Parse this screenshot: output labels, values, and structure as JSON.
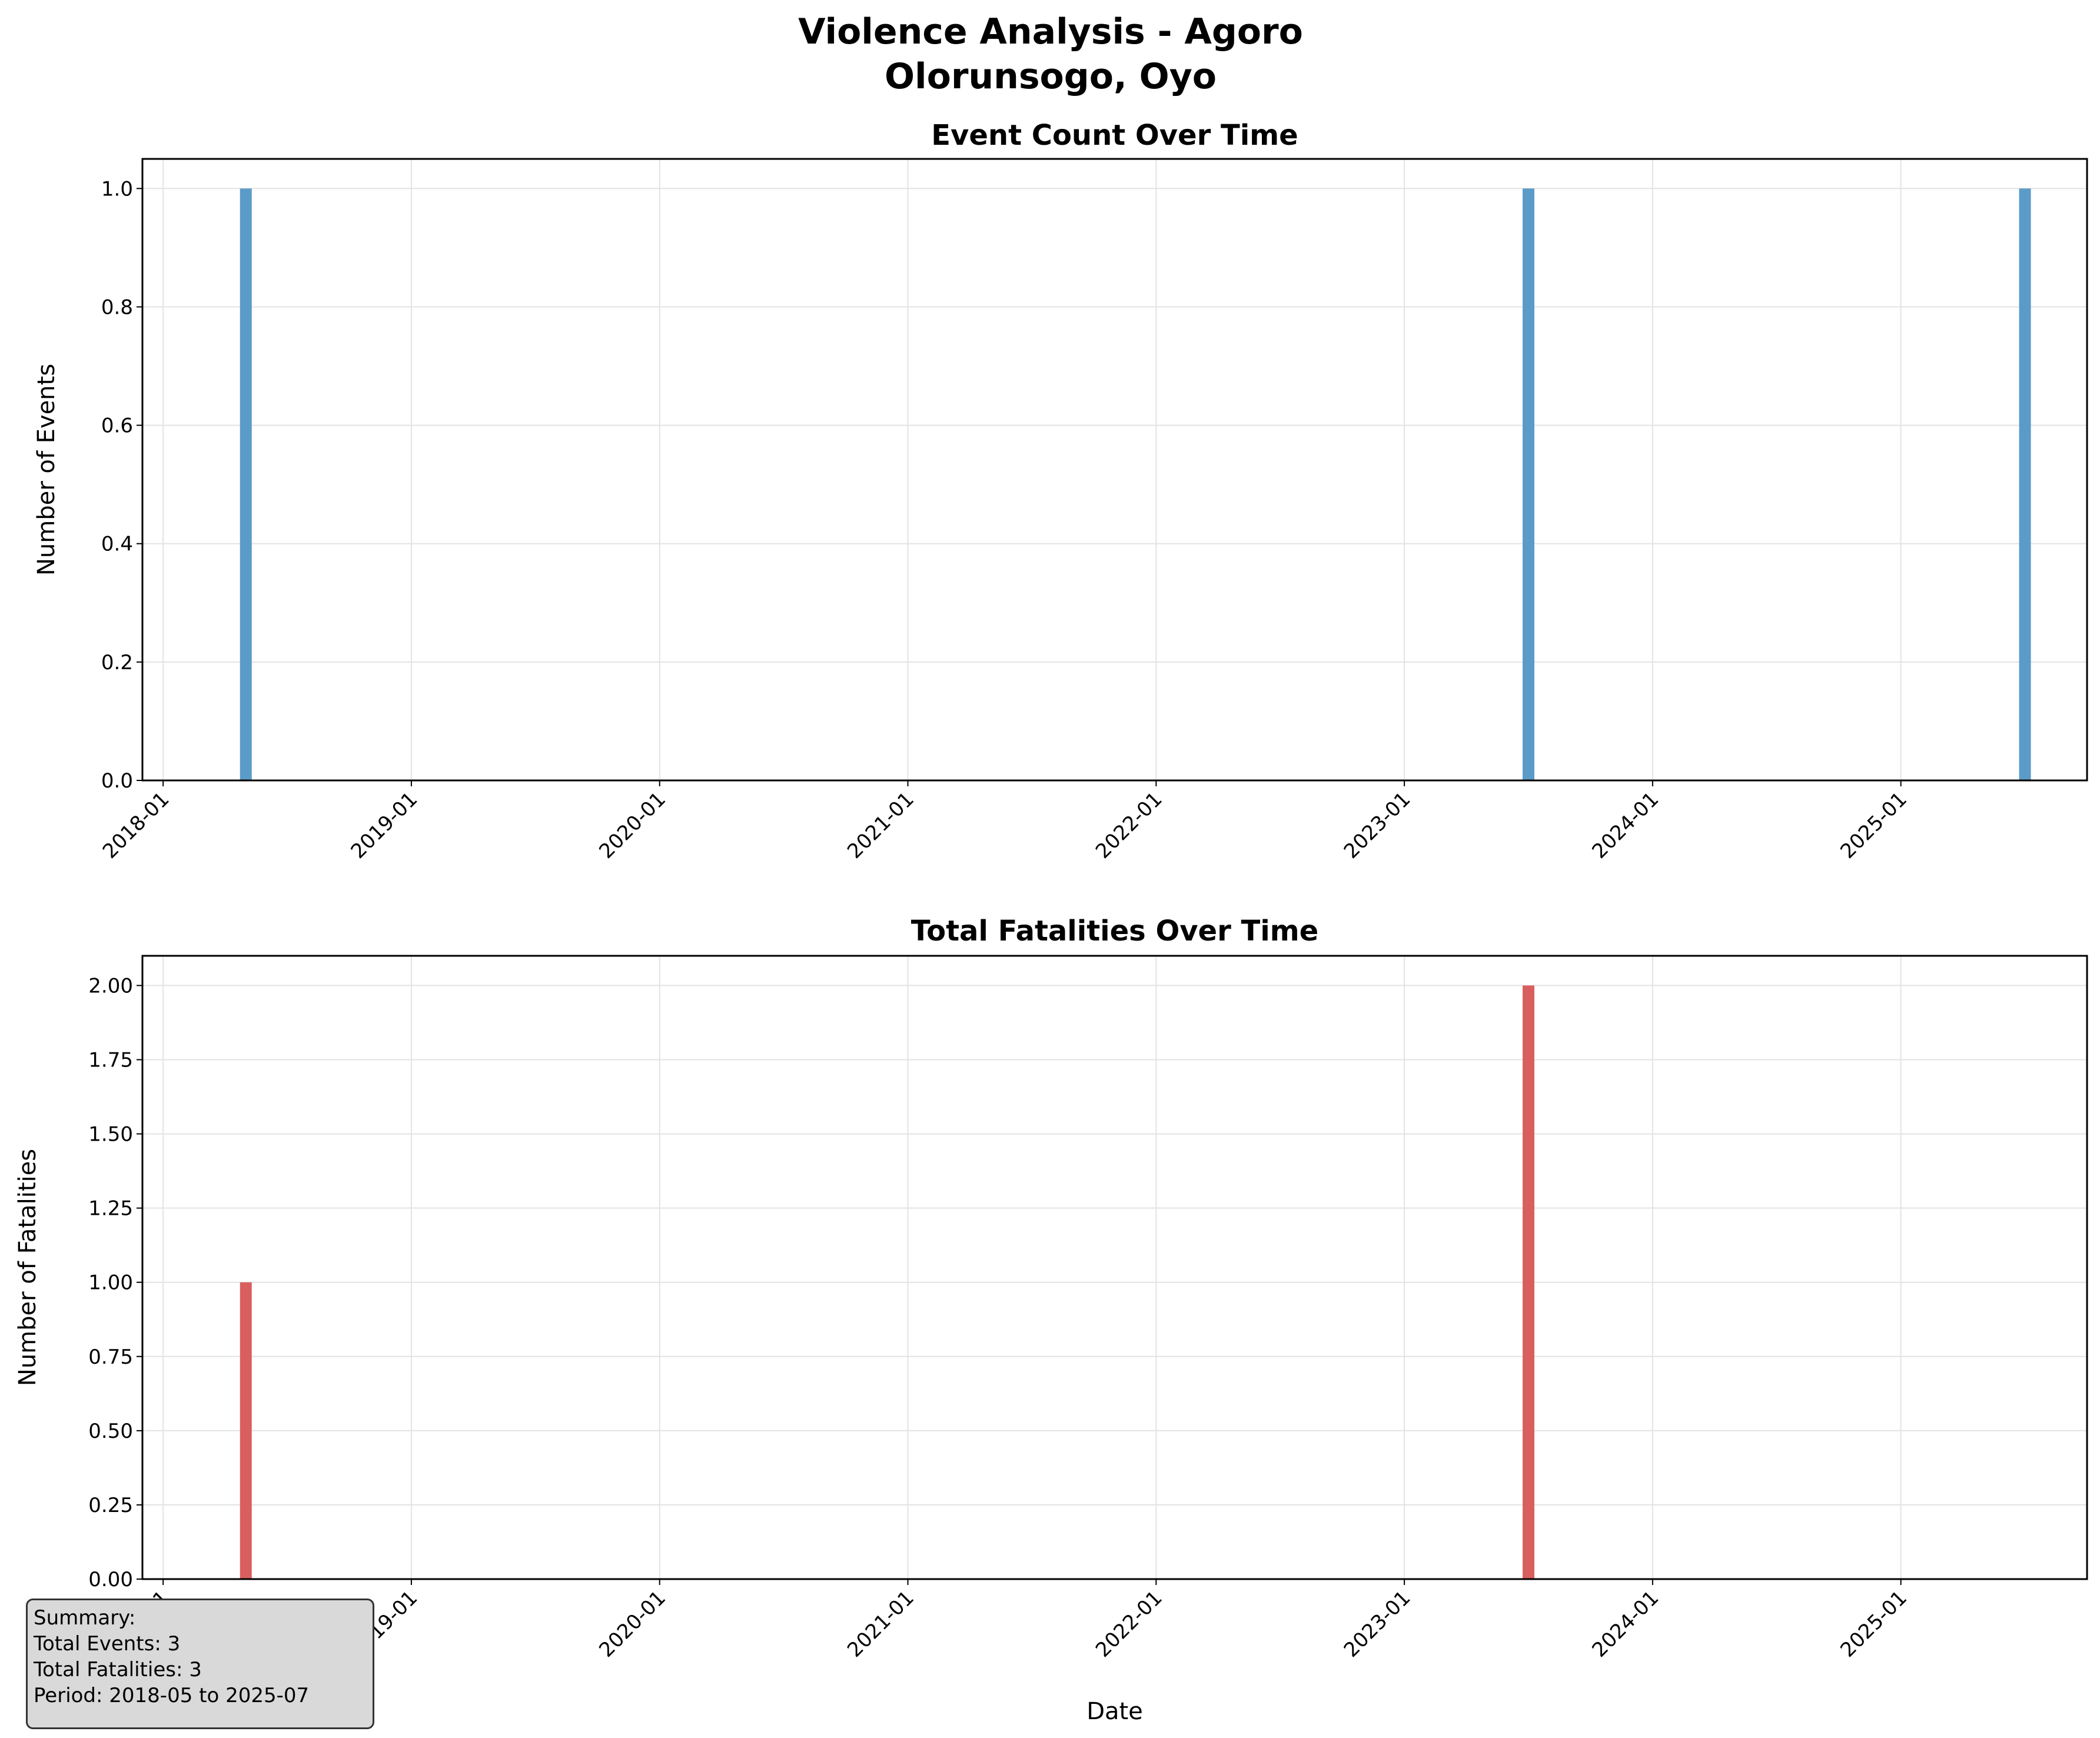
{
  "figure": {
    "title_line1": "Violence Analysis - Agoro",
    "title_line2": "Olorunsogo, Oyo"
  },
  "chart_data": [
    {
      "type": "bar",
      "title": "Event Count Over Time",
      "xlabel": "",
      "ylabel": "Number of Events",
      "x_tick_labels": [
        "2018-01",
        "2019-01",
        "2020-01",
        "2021-01",
        "2022-01",
        "2023-01",
        "2024-01",
        "2025-01"
      ],
      "y_ticks": [
        "0.0",
        "0.2",
        "0.4",
        "0.6",
        "0.8",
        "1.0"
      ],
      "ylim": [
        0,
        1.05
      ],
      "xlim": [
        "2017-12",
        "2025-10"
      ],
      "grid": true,
      "color": "#5b9bc8",
      "points": [
        {
          "date": "2018-05",
          "value": 1
        },
        {
          "date": "2023-07",
          "value": 1
        },
        {
          "date": "2025-07",
          "value": 1
        }
      ]
    },
    {
      "type": "bar",
      "title": "Total Fatalities Over Time",
      "xlabel": "Date",
      "ylabel": "Number of Fatalities",
      "x_tick_labels": [
        "2018-01",
        "2019-01",
        "2020-01",
        "2021-01",
        "2022-01",
        "2023-01",
        "2024-01",
        "2025-01"
      ],
      "y_ticks": [
        "0.00",
        "0.25",
        "0.50",
        "0.75",
        "1.00",
        "1.25",
        "1.50",
        "1.75",
        "2.00"
      ],
      "ylim": [
        0,
        2.1
      ],
      "xlim": [
        "2017-12",
        "2025-10"
      ],
      "grid": true,
      "color": "#d95f5f",
      "points": [
        {
          "date": "2018-05",
          "value": 1
        },
        {
          "date": "2023-07",
          "value": 2
        },
        {
          "date": "2025-07",
          "value": 0
        }
      ]
    }
  ],
  "summary": {
    "heading": "Summary:",
    "events": "Total Events: 3",
    "fatalities": "Total Fatalities: 3",
    "period": "Period: 2018-05 to 2025-07"
  }
}
